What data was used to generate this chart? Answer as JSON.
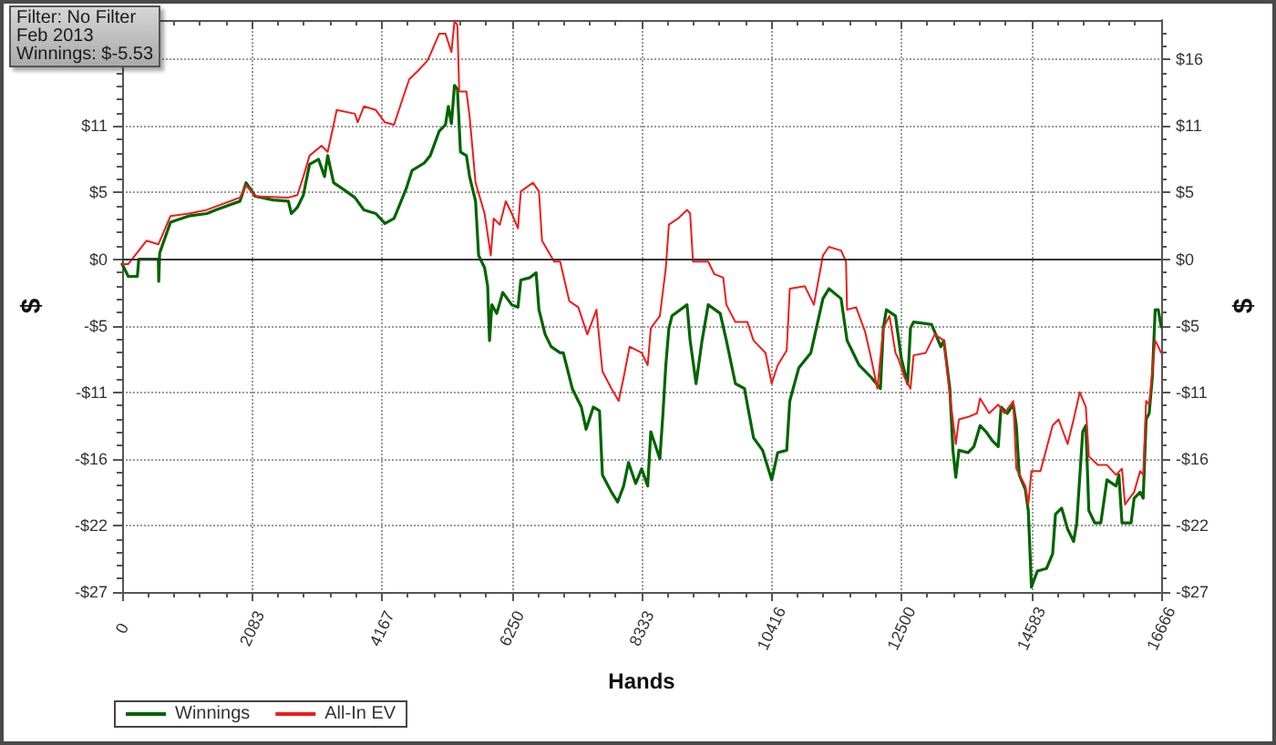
{
  "chart_data": {
    "type": "line",
    "title": "Filter: No Filter",
    "subtitle": "Feb 2013",
    "annotations": [
      "Winnings: $-5.53"
    ],
    "xlabel": "Hands",
    "ylabel": "$",
    "y2label": "$",
    "xlim": [
      0,
      16666
    ],
    "xticks": [
      0,
      2083,
      4167,
      6250,
      8333,
      10416,
      12500,
      14583,
      16666
    ],
    "ylim": [
      -27,
      19.4
    ],
    "yticks": [
      {
        "value": -27,
        "label": "-$27"
      },
      {
        "value": -21.6,
        "label": "-$22"
      },
      {
        "value": -16.2,
        "label": "-$16"
      },
      {
        "value": -10.8,
        "label": "-$11"
      },
      {
        "value": -5.4,
        "label": "-$5"
      },
      {
        "value": 0,
        "label": "$0"
      },
      {
        "value": 5.4,
        "label": "$5"
      },
      {
        "value": 10.8,
        "label": "$11"
      },
      {
        "value": 16.2,
        "label": null
      }
    ],
    "y2lim": [
      -27,
      19.4
    ],
    "y2ticks": [
      {
        "value": -27,
        "label": "-$27"
      },
      {
        "value": -21.6,
        "label": "-$22"
      },
      {
        "value": -16.2,
        "label": "-$16"
      },
      {
        "value": -10.8,
        "label": "-$11"
      },
      {
        "value": -5.4,
        "label": "-$5"
      },
      {
        "value": 0,
        "label": "$0"
      },
      {
        "value": 5.4,
        "label": "$5"
      },
      {
        "value": 10.8,
        "label": "$11"
      },
      {
        "value": 16.2,
        "label": "$16"
      }
    ],
    "grid": true,
    "legend": "bottom left",
    "ref_lines": [
      {
        "axis": "y",
        "value": 0,
        "color": "#333333"
      }
    ],
    "series": [
      {
        "name": "Winnings",
        "color": "#006400",
        "x": [
          0,
          99,
          244,
          267,
          427,
          581,
          587,
          602,
          776,
          1067,
          1358,
          1503,
          1890,
          1988,
          2084,
          2134,
          2424,
          2666,
          2715,
          2811,
          2907,
          3006,
          3151,
          3247,
          3297,
          3392,
          3538,
          3733,
          3878,
          4070,
          4215,
          4361,
          4459,
          4555,
          4651,
          4846,
          4942,
          5087,
          5186,
          5233,
          5282,
          5331,
          5378,
          5427,
          5523,
          5573,
          5669,
          5718,
          5814,
          5863,
          5893,
          5930,
          6009,
          6105,
          6250,
          6349,
          6395,
          6541,
          6640,
          6686,
          6785,
          6881,
          7026,
          7076,
          7221,
          7366,
          7442,
          7558,
          7657,
          7704,
          7849,
          7948,
          8044,
          8122,
          8238,
          8334,
          8430,
          8480,
          8625,
          8675,
          8721,
          8770,
          8820,
          9061,
          9111,
          9206,
          9302,
          9401,
          9593,
          9692,
          9837,
          9983,
          10029,
          10128,
          10273,
          10419,
          10515,
          10660,
          10709,
          10855,
          11047,
          11241,
          11337,
          11532,
          11628,
          11822,
          12017,
          12163,
          12209,
          12259,
          12404,
          12500,
          12599,
          12645,
          12695,
          12985,
          13131,
          13180,
          13276,
          13326,
          13372,
          13422,
          13567,
          13663,
          13762,
          13858,
          13954,
          14053,
          14099,
          14198,
          14294,
          14343,
          14390,
          14488,
          14535,
          14585,
          14681,
          14826,
          14925,
          14971,
          15070,
          15166,
          15262,
          15312,
          15408,
          15458,
          15506,
          15602,
          15698,
          15797,
          15942,
          15988,
          16038,
          16183,
          16232,
          16329,
          16378,
          16425,
          16474,
          16524,
          16570,
          16620,
          16666
        ],
        "values": [
          -0.4,
          -1.4,
          -1.4,
          0,
          0,
          0,
          -1.8,
          0.5,
          3.0,
          3.5,
          3.7,
          4.0,
          4.7,
          6.2,
          5.5,
          5.1,
          4.8,
          4.7,
          3.7,
          4.2,
          5.2,
          7.7,
          8.1,
          6.7,
          8.4,
          6.2,
          5.7,
          5.0,
          4.0,
          3.7,
          2.9,
          3.3,
          4.5,
          5.7,
          7.2,
          7.8,
          8.4,
          10.4,
          10.9,
          12.4,
          11.0,
          14.1,
          13.8,
          8.7,
          8.4,
          6.7,
          4.7,
          0.3,
          -0.7,
          -2.2,
          -6.6,
          -3.7,
          -4.4,
          -2.7,
          -3.7,
          -3.9,
          -1.7,
          -1.5,
          -1.1,
          -4.1,
          -6.1,
          -7.1,
          -7.6,
          -7.6,
          -10.5,
          -12.0,
          -13.8,
          -12.0,
          -12.3,
          -17.5,
          -18.9,
          -19.7,
          -18.4,
          -16.5,
          -18.2,
          -17.0,
          -18.4,
          -14.0,
          -16.2,
          -12.5,
          -8.6,
          -5.6,
          -4.6,
          -3.7,
          -6.6,
          -10.1,
          -6.6,
          -3.7,
          -4.4,
          -6.6,
          -10.1,
          -10.5,
          -11.8,
          -14.5,
          -15.5,
          -17.9,
          -15.7,
          -15.5,
          -11.5,
          -8.8,
          -7.6,
          -3.2,
          -2.4,
          -3.2,
          -6.6,
          -8.6,
          -9.6,
          -10.5,
          -5.6,
          -4.1,
          -4.6,
          -8.1,
          -10.1,
          -5.6,
          -5.1,
          -5.3,
          -7.1,
          -6.6,
          -10.5,
          -15.5,
          -17.7,
          -15.5,
          -15.7,
          -15.2,
          -13.5,
          -14.0,
          -14.7,
          -15.2,
          -12.0,
          -12.5,
          -11.8,
          -13.5,
          -17.5,
          -18.7,
          -20.4,
          -26.6,
          -25.3,
          -25.1,
          -23.9,
          -20.7,
          -20.2,
          -21.9,
          -22.9,
          -21.4,
          -14.0,
          -13.5,
          -20.4,
          -21.4,
          -21.4,
          -17.9,
          -18.4,
          -17.5,
          -21.4,
          -21.4,
          -19.4,
          -18.9,
          -19.4,
          -13.0,
          -12.5,
          -9.6,
          -4.1,
          -4.1,
          -5.5
        ]
      },
      {
        "name": "All-In EV",
        "color": "#ee1c1c",
        "x": [
          0,
          99,
          390,
          581,
          776,
          1067,
          1358,
          1890,
          1988,
          2134,
          2666,
          2811,
          2907,
          3006,
          3198,
          3297,
          3392,
          3442,
          3733,
          3779,
          3878,
          4070,
          4215,
          4361,
          4459,
          4605,
          4750,
          4895,
          4942,
          5087,
          5186,
          5282,
          5331,
          5378,
          5407,
          5523,
          5573,
          5669,
          5814,
          5913,
          5960,
          6058,
          6154,
          6250,
          6349,
          6395,
          6590,
          6686,
          6735,
          6930,
          7026,
          7172,
          7317,
          7462,
          7608,
          7704,
          7849,
          7965,
          8044,
          8140,
          8334,
          8430,
          8480,
          8625,
          8721,
          8770,
          8916,
          9061,
          9111,
          9157,
          9401,
          9497,
          9642,
          9692,
          9837,
          10029,
          10128,
          10320,
          10419,
          10515,
          10660,
          10709,
          10951,
          11096,
          11241,
          11337,
          11532,
          11611,
          11628,
          11773,
          11918,
          12017,
          12114,
          12209,
          12308,
          12404,
          12453,
          12549,
          12645,
          12695,
          12890,
          13035,
          13180,
          13276,
          13372,
          13422,
          13567,
          13712,
          13762,
          13907,
          14053,
          14151,
          14294,
          14343,
          14488,
          14535,
          14585,
          14730,
          14925,
          15021,
          15166,
          15262,
          15360,
          15458,
          15506,
          15651,
          15797,
          15942,
          16038,
          16086,
          16232,
          16329,
          16378,
          16425,
          16474,
          16524,
          16570,
          16620,
          16666
        ],
        "values": [
          -0.4,
          -0.4,
          1.5,
          1.2,
          3.5,
          3.7,
          4.0,
          5.0,
          6.0,
          5.1,
          5.0,
          5.2,
          6.7,
          8.4,
          9.2,
          8.7,
          10.9,
          12.1,
          11.8,
          11.1,
          12.4,
          12.1,
          11.1,
          10.9,
          12.4,
          14.6,
          15.3,
          16.1,
          16.6,
          18.3,
          18.3,
          16.8,
          19.3,
          19.0,
          13.6,
          13.6,
          11.6,
          6.2,
          3.7,
          0.3,
          3.3,
          2.8,
          4.7,
          3.7,
          2.5,
          5.5,
          6.2,
          5.5,
          1.5,
          -0.2,
          -0.2,
          -3.4,
          -3.9,
          -6.1,
          -4.1,
          -9.1,
          -10.5,
          -11.5,
          -9.6,
          -7.1,
          -7.6,
          -8.6,
          -5.6,
          -4.6,
          -0.7,
          2.8,
          3.3,
          4.0,
          3.7,
          -0.2,
          -0.2,
          -1.2,
          -1.5,
          -3.7,
          -5.1,
          -5.1,
          -6.6,
          -7.6,
          -10.1,
          -8.6,
          -7.4,
          -2.4,
          -2.2,
          -3.7,
          0.3,
          1.0,
          0.7,
          -0.2,
          -4.1,
          -3.9,
          -5.9,
          -8.1,
          -10.5,
          -5.6,
          -4.6,
          -7.6,
          -8.1,
          -9.6,
          -10.5,
          -7.8,
          -7.6,
          -6.1,
          -6.6,
          -11.0,
          -15.0,
          -13.0,
          -12.8,
          -12.5,
          -11.3,
          -12.5,
          -11.8,
          -12.5,
          -11.5,
          -17.0,
          -18.4,
          -19.9,
          -17.2,
          -17.2,
          -13.5,
          -13.0,
          -15.0,
          -13.0,
          -10.8,
          -12.0,
          -16.0,
          -16.7,
          -16.7,
          -17.5,
          -17.0,
          -19.9,
          -18.9,
          -17.2,
          -17.5,
          -11.5,
          -11.8,
          -9.1,
          -6.6,
          -7.1,
          -7.6
        ]
      }
    ]
  }
}
